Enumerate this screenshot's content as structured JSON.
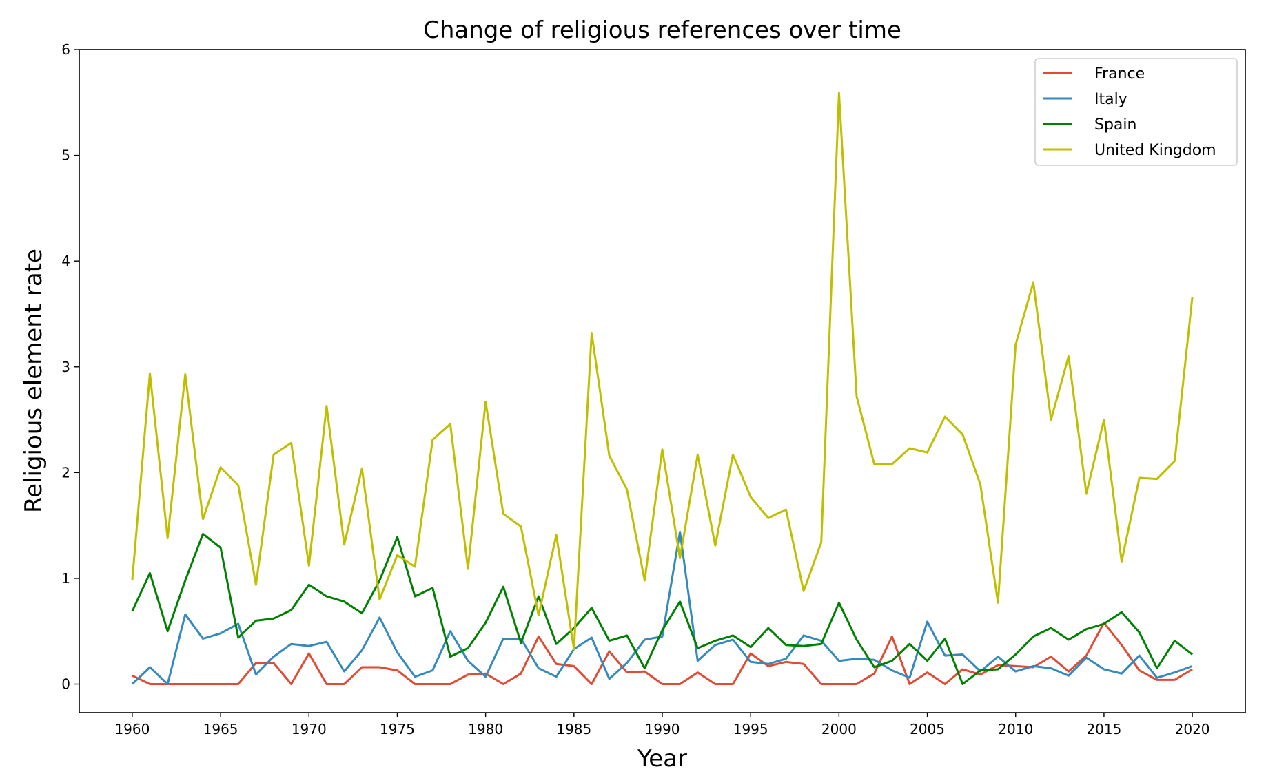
{
  "chart_data": {
    "type": "line",
    "title": "Change of religious references over time",
    "xlabel": "Year",
    "ylabel": "Religious element rate",
    "xlim": [
      1957,
      2023
    ],
    "ylim": [
      -0.27,
      6
    ],
    "x_ticks": [
      1960,
      1965,
      1970,
      1975,
      1980,
      1985,
      1990,
      1995,
      2000,
      2005,
      2010,
      2015,
      2020
    ],
    "y_ticks": [
      0,
      1,
      2,
      3,
      4,
      5,
      6
    ],
    "grid": false,
    "legend_position": "top-right",
    "x": [
      1960,
      1961,
      1962,
      1963,
      1964,
      1965,
      1966,
      1967,
      1968,
      1969,
      1970,
      1971,
      1972,
      1973,
      1974,
      1975,
      1976,
      1977,
      1978,
      1979,
      1980,
      1981,
      1982,
      1983,
      1984,
      1985,
      1986,
      1987,
      1988,
      1989,
      1990,
      1991,
      1992,
      1993,
      1994,
      1995,
      1996,
      1997,
      1998,
      1999,
      2000,
      2001,
      2002,
      2003,
      2004,
      2005,
      2006,
      2007,
      2008,
      2009,
      2010,
      2011,
      2012,
      2013,
      2014,
      2015,
      2016,
      2017,
      2018,
      2019,
      2020
    ],
    "series": [
      {
        "name": "France",
        "color": "#e24a33",
        "values": [
          0.08,
          0,
          0,
          0,
          0,
          0,
          0,
          0.2,
          0.2,
          0,
          0.29,
          0,
          0,
          0.16,
          0.16,
          0.13,
          0,
          0,
          0,
          0.09,
          0.1,
          0,
          0.1,
          0.45,
          0.19,
          0.17,
          0,
          0.31,
          0.11,
          0.12,
          0,
          0,
          0.11,
          0,
          0,
          0.29,
          0.17,
          0.21,
          0.19,
          0,
          0,
          0,
          0.1,
          0.45,
          0,
          0.11,
          0,
          0.14,
          0.09,
          0.18,
          0.17,
          0.16,
          0.26,
          0.12,
          0.27,
          0.58,
          0.37,
          0.13,
          0.04,
          0.04,
          0.14
        ]
      },
      {
        "name": "Italy",
        "color": "#348abd",
        "values": [
          0,
          0.16,
          0,
          0.66,
          0.43,
          0.48,
          0.57,
          0.09,
          0.26,
          0.38,
          0.36,
          0.4,
          0.12,
          0.32,
          0.63,
          0.3,
          0.07,
          0.13,
          0.5,
          0.22,
          0.07,
          0.43,
          0.43,
          0.15,
          0.07,
          0.33,
          0.44,
          0.05,
          0.2,
          0.42,
          0.45,
          1.44,
          0.22,
          0.37,
          0.42,
          0.21,
          0.19,
          0.24,
          0.46,
          0.41,
          0.22,
          0.24,
          0.23,
          0.13,
          0.06,
          0.59,
          0.27,
          0.28,
          0.12,
          0.26,
          0.12,
          0.17,
          0.15,
          0.08,
          0.25,
          0.14,
          0.1,
          0.27,
          0.06,
          0.11,
          0.17
        ]
      },
      {
        "name": "Spain",
        "color": "#008000",
        "values": [
          0.69,
          1.05,
          0.5,
          0.98,
          1.42,
          1.29,
          0.44,
          0.6,
          0.62,
          0.7,
          0.94,
          0.83,
          0.78,
          0.67,
          0.98,
          1.39,
          0.83,
          0.91,
          0.26,
          0.34,
          0.58,
          0.92,
          0.39,
          0.83,
          0.38,
          0.53,
          0.72,
          0.41,
          0.46,
          0.15,
          0.51,
          0.78,
          0.34,
          0.41,
          0.46,
          0.35,
          0.53,
          0.37,
          0.36,
          0.38,
          0.77,
          0.42,
          0.16,
          0.22,
          0.38,
          0.22,
          0.43,
          0,
          0.13,
          0.14,
          0.28,
          0.45,
          0.53,
          0.42,
          0.52,
          0.57,
          0.68,
          0.49,
          0.15,
          0.41,
          0.28
        ]
      },
      {
        "name": "United Kingdom",
        "color": "#bfbf00",
        "values": [
          0.98,
          2.94,
          1.38,
          2.93,
          1.56,
          2.05,
          1.88,
          0.94,
          2.17,
          2.28,
          1.12,
          2.63,
          1.32,
          2.04,
          0.8,
          1.22,
          1.11,
          2.31,
          2.46,
          1.09,
          2.67,
          1.61,
          1.49,
          0.65,
          1.41,
          0.33,
          3.32,
          2.16,
          1.84,
          0.98,
          2.22,
          1.19,
          2.17,
          1.31,
          2.17,
          1.77,
          1.57,
          1.65,
          0.88,
          1.34,
          5.59,
          2.72,
          2.08,
          2.08,
          2.23,
          2.19,
          2.53,
          2.36,
          1.89,
          0.77,
          3.21,
          3.8,
          2.5,
          3.1,
          1.8,
          2.5,
          1.16,
          1.95,
          1.94,
          2.11,
          3.66
        ]
      }
    ]
  }
}
